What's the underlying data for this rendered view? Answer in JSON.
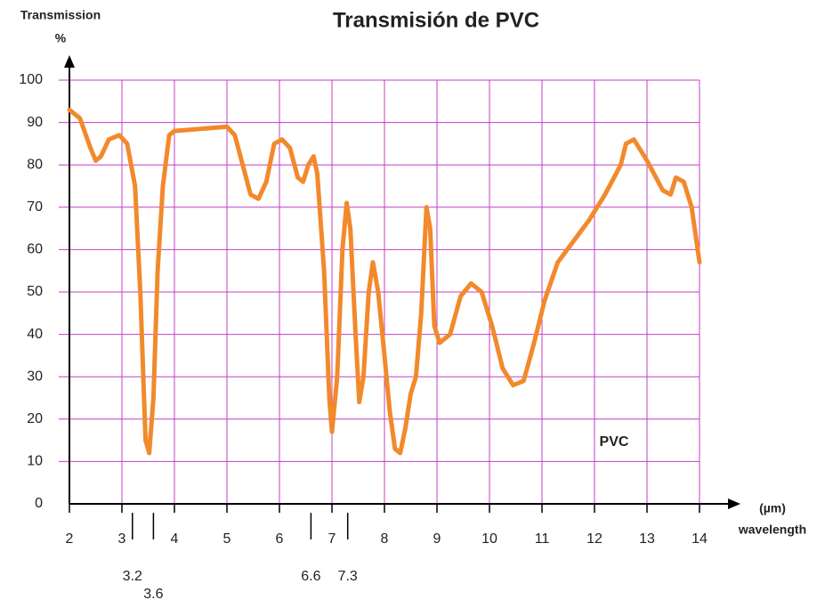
{
  "chart_data": {
    "type": "line",
    "title": "Transmisión de PVC",
    "y_label": "Transmission",
    "y_unit": "%",
    "x_unit": "(µm)",
    "x_label": "wavelength",
    "annotation": "PVC",
    "xlim": [
      2,
      14
    ],
    "ylim": [
      0,
      100
    ],
    "xticks": [
      2,
      3,
      4,
      5,
      6,
      7,
      8,
      9,
      10,
      11,
      12,
      13,
      14
    ],
    "yticks": [
      0,
      10,
      20,
      30,
      40,
      50,
      60,
      70,
      80,
      90,
      100
    ],
    "marked_wavelengths": [
      3.2,
      3.6,
      6.6,
      7.3
    ],
    "grid": true,
    "grid_color": "#c23fc2",
    "series": [
      {
        "name": "PVC",
        "color": "#f2892b",
        "x": [
          2.0,
          2.2,
          2.4,
          2.5,
          2.6,
          2.75,
          2.95,
          3.1,
          3.25,
          3.35,
          3.45,
          3.52,
          3.6,
          3.68,
          3.78,
          3.9,
          4.0,
          5.0,
          5.15,
          5.3,
          5.45,
          5.6,
          5.75,
          5.9,
          6.05,
          6.2,
          6.35,
          6.45,
          6.55,
          6.65,
          6.72,
          6.85,
          6.95,
          7.0,
          7.1,
          7.2,
          7.28,
          7.35,
          7.45,
          7.52,
          7.6,
          7.7,
          7.78,
          7.88,
          8.0,
          8.1,
          8.2,
          8.3,
          8.4,
          8.5,
          8.6,
          8.7,
          8.8,
          8.87,
          8.95,
          9.05,
          9.25,
          9.45,
          9.65,
          9.85,
          10.05,
          10.25,
          10.45,
          10.65,
          10.85,
          11.05,
          11.3,
          11.6,
          11.9,
          12.2,
          12.5,
          12.6,
          12.75,
          13.0,
          13.3,
          13.45,
          13.55,
          13.7,
          13.85,
          14.0
        ],
        "values": [
          93,
          91,
          84,
          81,
          82,
          86,
          87,
          85,
          75,
          50,
          15,
          12,
          25,
          55,
          75,
          87,
          88,
          89,
          87,
          80,
          73,
          72,
          76,
          85,
          86,
          84,
          77,
          76,
          80,
          82,
          78,
          55,
          25,
          17,
          30,
          60,
          71,
          65,
          40,
          24,
          30,
          50,
          57,
          50,
          35,
          22,
          13,
          12,
          18,
          26,
          30,
          45,
          70,
          65,
          42,
          38,
          40,
          49,
          52,
          50,
          42,
          32,
          28,
          29,
          38,
          48,
          57,
          62,
          67,
          73,
          80,
          85,
          86,
          81,
          74,
          73,
          77,
          76,
          70,
          57
        ]
      }
    ]
  }
}
